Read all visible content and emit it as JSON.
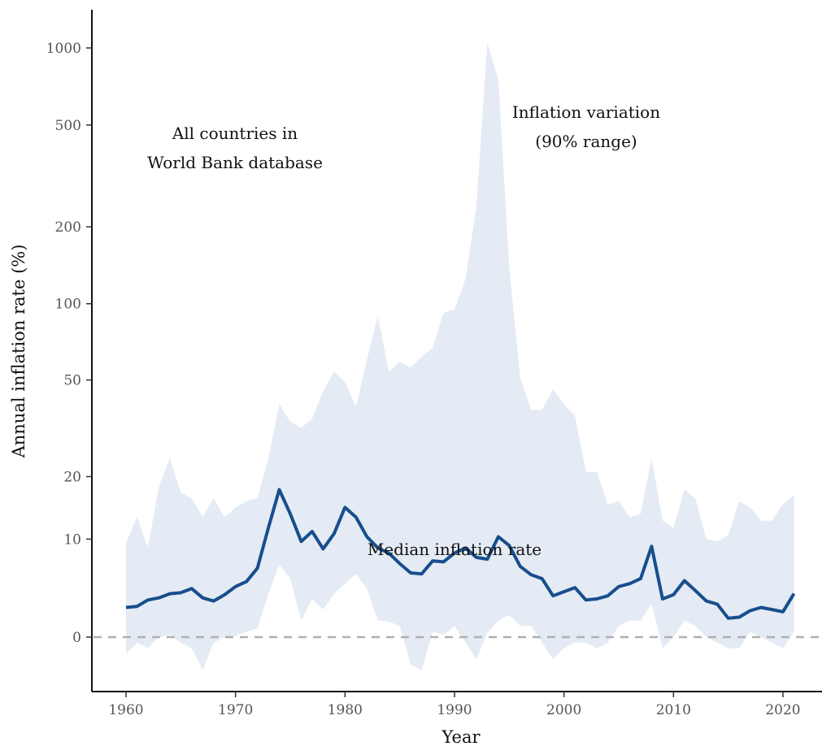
{
  "chart_data": {
    "type": "area",
    "xlabel": "Year",
    "ylabel": "Annual inflation rate (%)",
    "y_scale": "pseudo-log",
    "xlim": [
      1958,
      2023
    ],
    "x_ticks": [
      1960,
      1970,
      1980,
      1990,
      2000,
      2010,
      2020
    ],
    "y_ticks": [
      0,
      10,
      20,
      50,
      100,
      200,
      500,
      1000
    ],
    "y_tick_labels": [
      "0",
      "10",
      "20",
      "50",
      "100",
      "200",
      "500",
      "1000"
    ],
    "grid": false,
    "zero_line": "dashed gray at 0",
    "annotations": [
      {
        "lines": [
          "All countries in",
          "World Bank database"
        ]
      },
      {
        "lines": [
          "Inflation variation",
          "(90% range)"
        ]
      },
      {
        "lines": [
          "Median inflation rate"
        ]
      }
    ],
    "colors": {
      "band": "#e4ebf4",
      "median": "#174e8c",
      "zero_line": "#b0b0b0",
      "axis": "#111111"
    },
    "x": [
      1960,
      1961,
      1962,
      1963,
      1964,
      1965,
      1966,
      1967,
      1968,
      1969,
      1970,
      1971,
      1972,
      1973,
      1974,
      1975,
      1976,
      1977,
      1978,
      1979,
      1980,
      1981,
      1982,
      1983,
      1984,
      1985,
      1986,
      1987,
      1988,
      1989,
      1990,
      1991,
      1992,
      1993,
      1994,
      1995,
      1996,
      1997,
      1998,
      1999,
      2000,
      2001,
      2002,
      2003,
      2004,
      2005,
      2006,
      2007,
      2008,
      2009,
      2010,
      2011,
      2012,
      2013,
      2014,
      2015,
      2016,
      2017,
      2018,
      2019,
      2020,
      2021
    ],
    "series": [
      {
        "name": "Inflation variation (90% range)",
        "kind": "band",
        "lower": [
          -1.5,
          -0.5,
          -1.0,
          0.0,
          0.2,
          -0.5,
          -1.0,
          -3.0,
          -0.5,
          0.0,
          0.1,
          0.5,
          0.8,
          4.0,
          7.0,
          5.5,
          1.5,
          3.5,
          2.5,
          4.0,
          5.0,
          6.0,
          4.5,
          1.5,
          1.4,
          1.0,
          -2.5,
          -3.0,
          0.5,
          0.2,
          1.0,
          -0.5,
          -2.0,
          0.4,
          1.5,
          2.0,
          1.0,
          1.0,
          -0.5,
          -2.0,
          -1.0,
          -0.5,
          -0.5,
          -1.0,
          -0.5,
          1.0,
          1.5,
          1.5,
          3.0,
          -1.0,
          0.0,
          1.5,
          1.0,
          0.0,
          -0.5,
          -1.0,
          -1.0,
          0.5,
          0.0,
          -0.5,
          -1.0,
          0.5
        ],
        "upper": [
          9.5,
          13.0,
          9.0,
          18.0,
          24.0,
          17.0,
          16.0,
          13.0,
          16.0,
          13.0,
          14.5,
          15.5,
          16.0,
          24.0,
          40.0,
          34.0,
          32.0,
          35.0,
          45.0,
          54.0,
          49.0,
          39.0,
          60.0,
          90.0,
          54.0,
          59.0,
          56.0,
          62.0,
          67.0,
          92.0,
          95.0,
          125.0,
          240.0,
          1050.0,
          750.0,
          140.0,
          51.0,
          38.0,
          38.0,
          46.0,
          40.0,
          36.0,
          21.0,
          21.0,
          15.0,
          15.5,
          13.0,
          13.5,
          24.0,
          12.5,
          11.5,
          17.5,
          16.0,
          10.0,
          9.7,
          10.5,
          15.5,
          14.5,
          12.5,
          12.5,
          15.0,
          16.5
        ]
      },
      {
        "name": "Median inflation rate",
        "kind": "line",
        "values": [
          2.7,
          2.8,
          3.4,
          3.6,
          4.0,
          4.1,
          4.5,
          3.6,
          3.3,
          3.9,
          4.7,
          5.2,
          6.6,
          11.5,
          17.5,
          13.5,
          9.7,
          11.0,
          8.8,
          10.7,
          14.5,
          13.0,
          10.3,
          8.9,
          8.3,
          7.1,
          6.1,
          6.0,
          7.4,
          7.3,
          8.3,
          8.9,
          7.8,
          7.6,
          10.3,
          9.2,
          6.8,
          5.9,
          5.5,
          3.8,
          4.2,
          4.6,
          3.4,
          3.5,
          3.8,
          4.7,
          5.0,
          5.5,
          9.1,
          3.5,
          3.9,
          5.3,
          4.3,
          3.3,
          3.0,
          1.7,
          1.8,
          2.4,
          2.7,
          2.5,
          2.3,
          4.0
        ]
      }
    ]
  }
}
